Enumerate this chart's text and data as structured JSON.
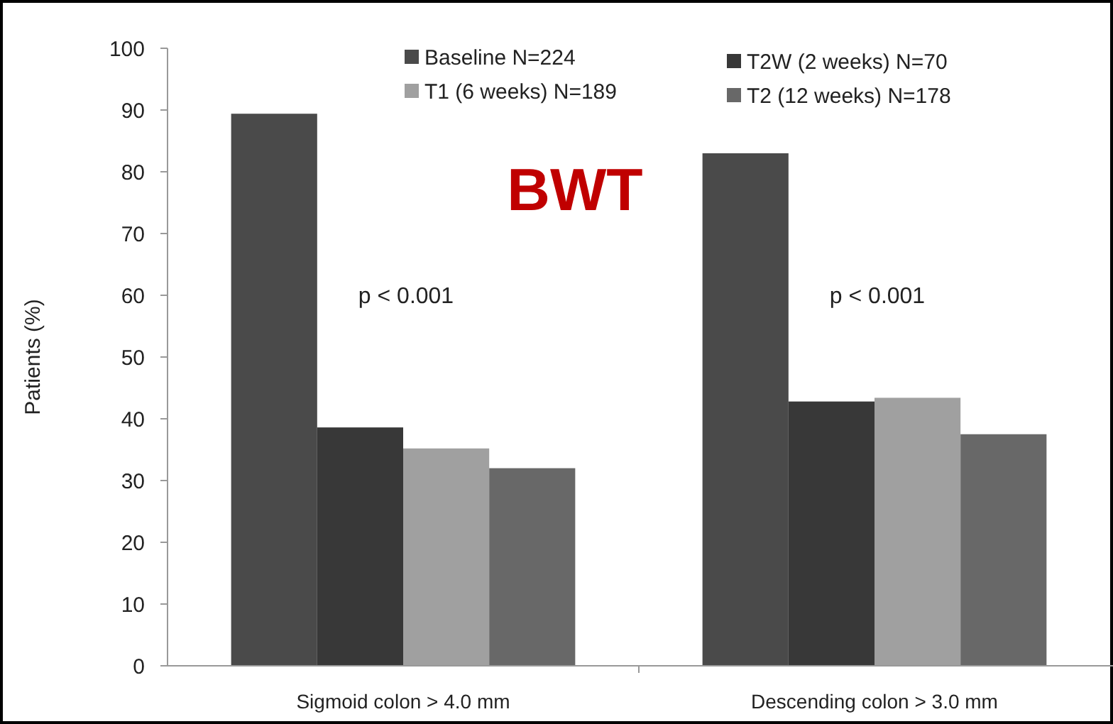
{
  "chart_data": {
    "type": "bar",
    "title": "BWT",
    "ylabel": "Patients (%)",
    "categories": [
      "Sigmoid colon > 4.0 mm",
      "Descending colon > 3.0 mm"
    ],
    "series": [
      {
        "name": "Baseline N=224",
        "color": "#4a4a4a",
        "values": [
          89.4,
          83.0
        ]
      },
      {
        "name": "T2W (2 weeks) N=70",
        "color": "#383838",
        "values": [
          38.6,
          42.8
        ]
      },
      {
        "name": "T1 (6 weeks) N=189",
        "color": "#a0a0a0",
        "values": [
          35.2,
          43.4
        ]
      },
      {
        "name": "T2 (12 weeks) N=178",
        "color": "#686868",
        "values": [
          32.0,
          37.5
        ]
      }
    ],
    "ylim": [
      0,
      100
    ],
    "yticks": [
      0,
      10,
      20,
      30,
      40,
      50,
      60,
      70,
      80,
      90,
      100
    ],
    "grid": false,
    "legend": "top",
    "annotations": [
      "p < 0.001",
      "p < 0.001"
    ]
  }
}
